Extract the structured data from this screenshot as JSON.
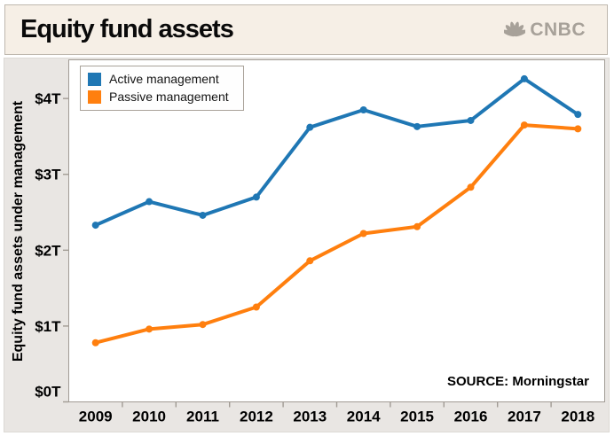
{
  "header": {
    "title": "Equity fund assets",
    "logo_text": "CNBC"
  },
  "legend": {
    "items": [
      {
        "label": "Active management",
        "color": "#1f77b4"
      },
      {
        "label": "Passive management",
        "color": "#ff7f0e"
      }
    ]
  },
  "source": {
    "text": "SOURCE: Morningstar"
  },
  "colors": {
    "active_line": "#1f77b4",
    "passive_line": "#ff7f0e",
    "header_bg": "#f6efe6",
    "chart_margin_bg": "#e9e6e3",
    "plot_bg": "#ffffff",
    "axis_line": "#a19b94",
    "logo_gray": "#a7a199",
    "text": "#000000"
  },
  "chart_data": {
    "type": "line",
    "title": "Equity fund assets",
    "categories": [
      "2009",
      "2010",
      "2011",
      "2012",
      "2013",
      "2014",
      "2015",
      "2016",
      "2017",
      "2018"
    ],
    "series": [
      {
        "name": "Active management",
        "color": "#1f77b4",
        "values": [
          2.33,
          2.64,
          2.46,
          2.7,
          3.62,
          3.85,
          3.63,
          3.71,
          4.26,
          3.79
        ]
      },
      {
        "name": "Passive management",
        "color": "#ff7f0e",
        "values": [
          0.78,
          0.96,
          1.02,
          1.25,
          1.86,
          2.22,
          2.31,
          2.83,
          3.65,
          3.6
        ]
      }
    ],
    "xlabel": "",
    "ylabel": "Equity fund assets under management",
    "yticks": [
      0,
      1,
      2,
      3,
      4
    ],
    "ytick_labels": [
      "$0T",
      "$1T",
      "$2T",
      "$3T",
      "$4T"
    ],
    "ylim": [
      0,
      4.51
    ],
    "unit": "trillion USD",
    "grid": false,
    "legend_position": "top-left",
    "source": "SOURCE: Morningstar"
  }
}
